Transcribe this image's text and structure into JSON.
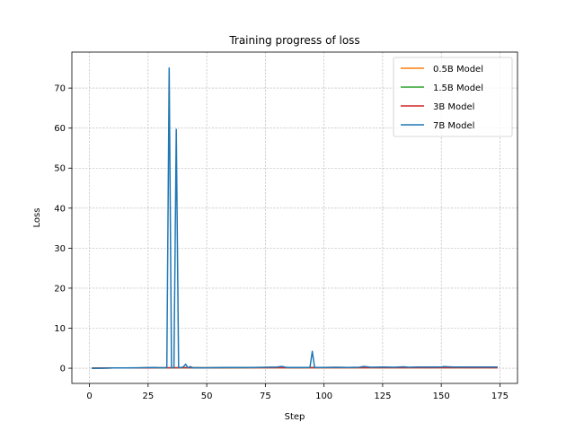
{
  "chart_data": {
    "type": "line",
    "title": "Training progress of loss",
    "xlabel": "Step",
    "ylabel": "Loss",
    "xlim": [
      -7.5,
      182.5
    ],
    "ylim": [
      -3.8,
      79.0
    ],
    "xticks": [
      0,
      25,
      50,
      75,
      100,
      125,
      150,
      175
    ],
    "yticks": [
      0,
      10,
      20,
      30,
      40,
      50,
      60,
      70
    ],
    "grid": true,
    "legend_position": "top-right",
    "series": [
      {
        "name": "0.5B Model",
        "color": "#ff7f0e",
        "x": [
          1,
          10,
          20,
          30,
          34,
          40,
          50,
          60,
          70,
          80,
          90,
          95,
          100,
          110,
          120,
          130,
          140,
          150,
          160,
          170,
          174
        ],
        "y": [
          0.02,
          0.05,
          0.08,
          0.1,
          0.08,
          0.1,
          0.08,
          0.1,
          0.12,
          0.12,
          0.1,
          0.15,
          0.12,
          0.12,
          0.12,
          0.12,
          0.12,
          0.12,
          0.12,
          0.12,
          0.12
        ]
      },
      {
        "name": "1.5B Model",
        "color": "#2ca02c",
        "x": [
          1,
          10,
          20,
          30,
          34,
          40,
          50,
          60,
          70,
          80,
          90,
          95,
          100,
          110,
          120,
          130,
          140,
          150,
          160,
          170,
          174
        ],
        "y": [
          0.02,
          0.05,
          0.08,
          0.1,
          0.1,
          0.12,
          0.1,
          0.12,
          0.14,
          0.15,
          0.12,
          0.18,
          0.14,
          0.14,
          0.15,
          0.15,
          0.15,
          0.15,
          0.15,
          0.15,
          0.15
        ]
      },
      {
        "name": "3B Model",
        "color": "#d62728",
        "x": [
          1,
          10,
          20,
          30,
          34,
          36,
          40,
          50,
          60,
          70,
          80,
          90,
          95,
          100,
          110,
          120,
          130,
          140,
          150,
          160,
          170,
          174
        ],
        "y": [
          0.02,
          0.05,
          0.08,
          0.1,
          0.1,
          0.1,
          0.12,
          0.1,
          0.12,
          0.12,
          0.12,
          0.12,
          0.12,
          0.12,
          0.12,
          0.12,
          0.12,
          0.12,
          0.12,
          0.12,
          0.12,
          0.12
        ]
      },
      {
        "name": "7B Model",
        "color": "#1f77b4",
        "x": [
          1,
          5,
          10,
          15,
          20,
          25,
          28,
          30,
          32,
          33,
          34,
          35,
          36,
          37,
          38,
          39,
          40,
          41,
          42,
          43,
          44,
          45,
          50,
          55,
          60,
          65,
          70,
          75,
          80,
          82,
          84,
          90,
          94,
          95,
          96,
          100,
          105,
          110,
          115,
          117,
          120,
          125,
          130,
          134,
          136,
          140,
          145,
          150,
          151,
          155,
          160,
          165,
          170,
          174
        ],
        "y": [
          0.0,
          0.0,
          0.05,
          0.05,
          0.1,
          0.15,
          0.2,
          0.1,
          0.1,
          0.2,
          75.0,
          0.1,
          0.1,
          59.7,
          0.1,
          0.2,
          0.3,
          1.0,
          0.1,
          0.4,
          0.1,
          0.1,
          0.1,
          0.15,
          0.2,
          0.15,
          0.2,
          0.25,
          0.3,
          0.45,
          0.2,
          0.2,
          0.2,
          4.2,
          0.2,
          0.2,
          0.25,
          0.2,
          0.25,
          0.45,
          0.25,
          0.3,
          0.25,
          0.35,
          0.25,
          0.3,
          0.3,
          0.3,
          0.4,
          0.3,
          0.3,
          0.3,
          0.3,
          0.3
        ]
      }
    ]
  }
}
